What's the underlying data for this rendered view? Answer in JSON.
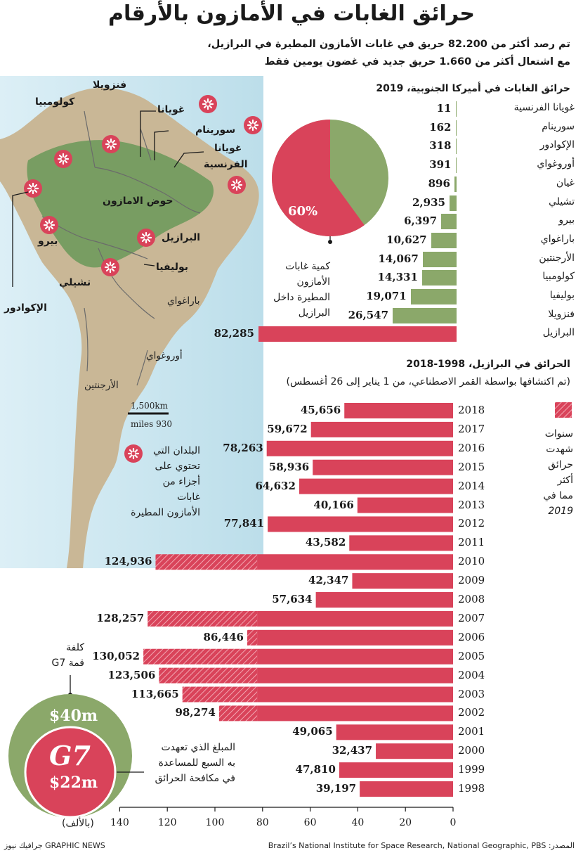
{
  "title": "حرائق الغابات في الأمازون بالأرقام",
  "subtitle_line1": "تم رصد أكثر من 82.200 حريق في غابات الأمازون المطيرة في البرازيل،",
  "subtitle_line2": "مع اشتعال أكثر من 1.660 حريق جديد في غضون يومين فقط",
  "colors": {
    "red": "#d9435a",
    "green": "#8ba86a",
    "map_land": "#c9b796",
    "map_forest": "#6f9a5c",
    "map_sea": "#c8e4ef"
  },
  "map": {
    "labels": {
      "venezuela": "فنزويلا",
      "colombia": "كولومبيا",
      "guyana": "غويانا",
      "suriname": "سورينام",
      "fguiana_1": "غويانا",
      "fguiana_2": "الفرنسية",
      "basin": "حوض الامازون",
      "brazil": "البرازيل",
      "peru": "بيرو",
      "bolivia": "بوليفيا",
      "chile": "تشيلي",
      "ecuador": "الإكوادور",
      "paraguay": "باراغواي",
      "uruguay": "أوروغواي",
      "argentina": "الأرجنتين"
    },
    "scale_km": "1,500km",
    "scale_miles": "930 miles",
    "legend_lines": [
      "البلدان التي",
      "تحتوي على",
      "أجزاء من",
      "غابات",
      "الأمازون المطيرة"
    ]
  },
  "pie": {
    "label": "60%",
    "value_pct": 60,
    "caption": [
      "كمية غابات",
      "الأمازون",
      "المطيرة داخل",
      "البرازيل"
    ]
  },
  "south_america_title": "حرائق الغابات في أميركا الجنوبية، 2019",
  "brazil_title": "الحرائق في البرازيل، 1998-2018",
  "brazil_note": "(تم اكتشافها بواسطة القمر الاصطناعي، من 1 يناير إلى 26 أغسطس)",
  "hatch_legend": [
    "سنوات",
    "شهدت",
    "حرائق",
    "أكثر",
    "مما في",
    "2019"
  ],
  "g7": {
    "cost_lines": [
      "كلفة",
      "قمة G7"
    ],
    "cost": "$40m",
    "logo": "G7",
    "pledge": "$22m",
    "pledge_lines": [
      "المبلغ الذي تعهدت",
      "به السبع للمساعدة",
      "في مكافحة الحرائق"
    ]
  },
  "axis_unit": "(بالألف)",
  "source": "المصدر: Brazil’s National Institute for Space Research, National Geographic, PBS",
  "credit": "GRAPHIC NEWS جرافيك نيوز",
  "chart_data": [
    {
      "type": "bar",
      "title": "حرائق الغابات في أميركا الجنوبية، 2019",
      "categories": [
        "غويانا الفرنسية",
        "سورينام",
        "الإكوادور",
        "أوروغواي",
        "غيان",
        "تشيلي",
        "بيرو",
        "باراغواي",
        "الأرجنتين",
        "كولومبيا",
        "بوليفيا",
        "فنزويلا",
        "البرازيل"
      ],
      "values": [
        11,
        162,
        318,
        391,
        896,
        2935,
        6397,
        10627,
        14067,
        14331,
        19071,
        26547,
        82285
      ],
      "labels": [
        "11",
        "162",
        "318",
        "391",
        "896",
        "2,935",
        "6,397",
        "10,627",
        "14,067",
        "14,331",
        "19,071",
        "26,547",
        "82,285"
      ]
    },
    {
      "type": "bar",
      "title": "الحرائق في البرازيل، 1998-2018",
      "categories": [
        "2018",
        "2017",
        "2016",
        "2015",
        "2014",
        "2013",
        "2012",
        "2011",
        "2010",
        "2009",
        "2008",
        "2007",
        "2006",
        "2005",
        "2004",
        "2003",
        "2002",
        "2001",
        "2000",
        "1999",
        "1998"
      ],
      "values": [
        45656,
        59672,
        78263,
        58936,
        64632,
        40166,
        77841,
        43582,
        124936,
        42347,
        57634,
        128257,
        86446,
        130052,
        123506,
        113665,
        98274,
        49065,
        32437,
        47810,
        39197
      ],
      "labels": [
        "45,656",
        "59,672",
        "78,263",
        "58,936",
        "64,632",
        "40,166",
        "77,841",
        "43,582",
        "124,936",
        "42,347",
        "57,634",
        "128,257",
        "86,446",
        "130,052",
        "123,506",
        "113,665",
        "98,274",
        "49,065",
        "32,437",
        "47,810",
        "39,197"
      ],
      "reference_2019": 82285,
      "xlim": [
        0,
        140
      ],
      "ticks": [
        "0",
        "20",
        "40",
        "60",
        "80",
        "100",
        "120",
        "140"
      ]
    }
  ]
}
